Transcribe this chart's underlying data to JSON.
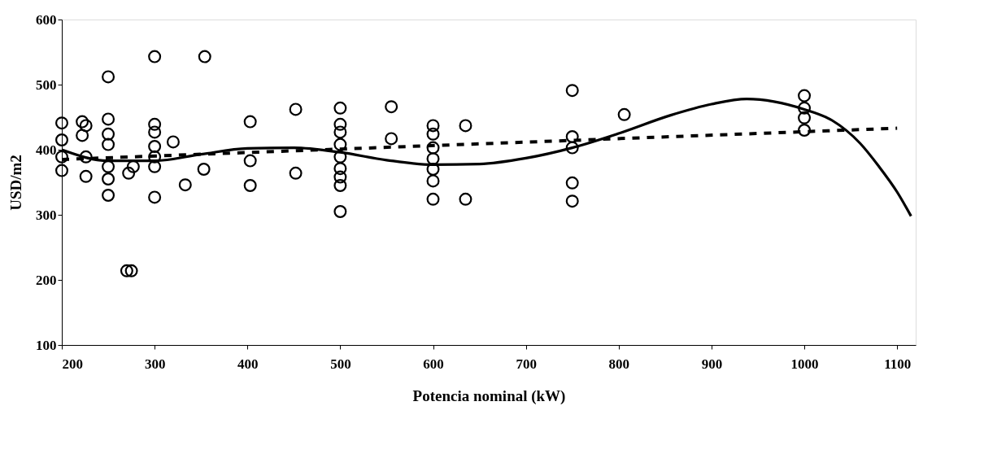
{
  "chart_data": {
    "type": "scatter",
    "xlabel": "Potencia nominal (kW)",
    "ylabel": "USD/m2",
    "xlim": [
      200,
      1120
    ],
    "xticks": [
      200,
      300,
      400,
      500,
      600,
      700,
      800,
      900,
      1000,
      1100
    ],
    "ylim": [
      100,
      600
    ],
    "yticks": [
      100,
      200,
      300,
      400,
      500,
      600
    ],
    "grid": false,
    "series": [
      {
        "type": "scatter",
        "color": "#000000",
        "marker": "circle",
        "x": [
          200,
          200,
          200,
          200,
          222,
          226,
          222,
          226,
          226,
          250,
          250,
          250,
          250,
          250,
          250,
          250,
          270,
          275,
          272,
          277,
          300,
          300,
          300,
          300,
          300,
          300,
          300,
          320,
          333,
          353,
          354,
          403,
          403,
          403,
          452,
          452,
          500,
          500,
          500,
          500,
          500,
          500,
          500,
          500,
          500,
          555,
          555,
          600,
          600,
          600,
          600,
          600,
          600,
          600,
          635,
          635,
          750,
          750,
          750,
          750,
          750,
          806,
          1000,
          1000,
          1000,
          1000
        ],
        "values": [
          441,
          415,
          389,
          368,
          443,
          437,
          422,
          389,
          359,
          512,
          447,
          424,
          408,
          374,
          355,
          330,
          214,
          214,
          364,
          374,
          543,
          439,
          427,
          405,
          389,
          374,
          327,
          412,
          346,
          370,
          543,
          443,
          383,
          345,
          462,
          364,
          464,
          439,
          427,
          408,
          389,
          371,
          358,
          345,
          305,
          466,
          417,
          437,
          424,
          403,
          386,
          370,
          352,
          324,
          437,
          324,
          491,
          420,
          403,
          349,
          321,
          454,
          483,
          464,
          449,
          430
        ]
      },
      {
        "type": "line",
        "color": "#000000",
        "line_style": "solid",
        "marker": "none",
        "x": [
          200,
          250,
          300,
          350,
          400,
          450,
          500,
          550,
          600,
          650,
          700,
          750,
          800,
          856,
          900,
          938,
          1000,
          1030,
          1060,
          1080,
          1100,
          1115
        ],
        "values": [
          400,
          383,
          383,
          393,
          402,
          403,
          396,
          384,
          377,
          378,
          387,
          403,
          425,
          453,
          470,
          478,
          462,
          445,
          410,
          375,
          335,
          298
        ]
      },
      {
        "type": "line",
        "color": "#000000",
        "line_style": "dashed",
        "marker": "none",
        "x": [
          200,
          1100
        ],
        "values": [
          385,
          433
        ]
      }
    ]
  }
}
